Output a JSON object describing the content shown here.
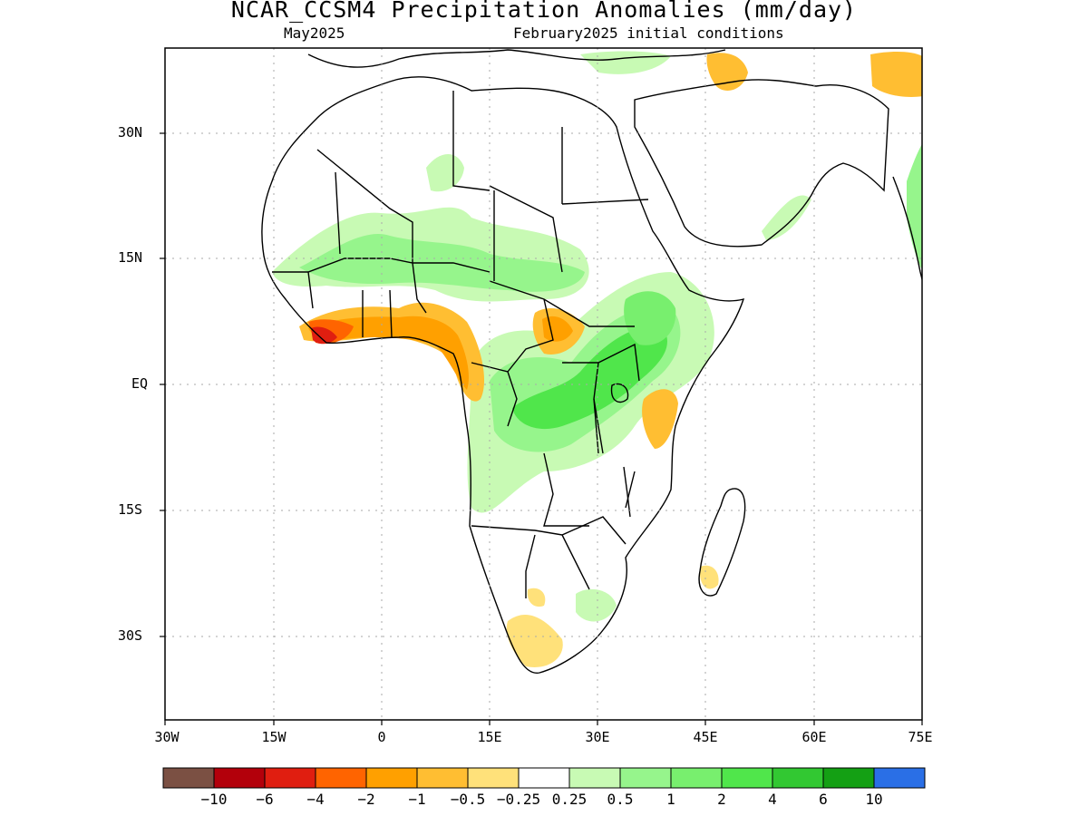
{
  "title": "NCAR_CCSM4 Precipitation Anomalies (mm/day)",
  "subtitle_left": "May2025",
  "subtitle_right": "February2025 initial conditions",
  "y_ticks": [
    "30N",
    "15N",
    "EQ",
    "15S",
    "30S"
  ],
  "x_ticks": [
    "30W",
    "15W",
    "0",
    "15E",
    "30E",
    "45E",
    "60E",
    "75E"
  ],
  "colorbar": {
    "colors": [
      "#7b5043",
      "#b3000b",
      "#e01e10",
      "#ff6400",
      "#ffa000",
      "#ffbe32",
      "#ffe17a",
      "#ffffff",
      "#c8fab4",
      "#96f58c",
      "#78ef6e",
      "#50e64b",
      "#32c832",
      "#14a014",
      "#2a6fe6"
    ],
    "labels": [
      "−10",
      "−6",
      "−4",
      "−2",
      "−1",
      "−0.5",
      "−0.25",
      "0.25",
      "0.5",
      "1",
      "2",
      "4",
      "6",
      "10"
    ]
  },
  "palette": {
    "dry_strong": "#e01e10",
    "dry_mid": "#ff6400",
    "dry": "#ffa000",
    "dry_light": "#ffbe32",
    "dry_faint": "#ffe17a",
    "wet_faint": "#c8fab4",
    "wet_light": "#96f58c",
    "wet": "#78ef6e",
    "wet_mid": "#50e64b",
    "wet_strong": "#32c832"
  }
}
